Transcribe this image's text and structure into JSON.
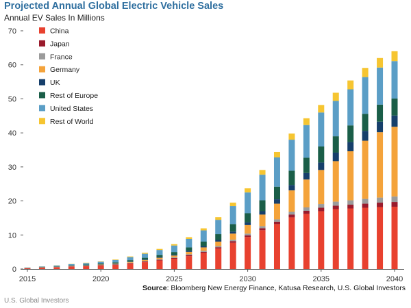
{
  "chart_data": {
    "type": "bar",
    "stacked": true,
    "title": "Projected Annual Global Electric Vehicle Sales",
    "subtitle": "Annual EV Sales In Millions",
    "ylim": [
      0,
      70
    ],
    "yticks": [
      0,
      10,
      20,
      30,
      40,
      50,
      60,
      70
    ],
    "xticks": [
      2015,
      2020,
      2025,
      2030,
      2035,
      2040
    ],
    "grid": false,
    "legend_position": "top-left",
    "categories": [
      2015,
      2016,
      2017,
      2018,
      2019,
      2020,
      2021,
      2022,
      2023,
      2024,
      2025,
      2026,
      2027,
      2028,
      2029,
      2030,
      2031,
      2032,
      2033,
      2034,
      2035,
      2036,
      2037,
      2038,
      2039,
      2040
    ],
    "series": [
      {
        "name": "China",
        "color": "#e8412f",
        "values": [
          0.2,
          0.4,
          0.5,
          0.7,
          0.8,
          1.0,
          1.2,
          1.6,
          2.0,
          2.5,
          3.0,
          3.8,
          4.7,
          6.0,
          7.7,
          9.4,
          11.4,
          13.2,
          15.2,
          16.2,
          17.0,
          17.6,
          17.8,
          18.0,
          18.2,
          18.3
        ]
      },
      {
        "name": "Japan",
        "color": "#9a1b2c",
        "values": [
          0.02,
          0.03,
          0.05,
          0.06,
          0.08,
          0.1,
          0.1,
          0.15,
          0.2,
          0.2,
          0.25,
          0.3,
          0.35,
          0.4,
          0.5,
          0.5,
          0.6,
          0.7,
          0.8,
          0.9,
          1.0,
          1.0,
          1.1,
          1.2,
          1.3,
          1.4
        ]
      },
      {
        "name": "France",
        "color": "#9b9b9b",
        "values": [
          0.02,
          0.03,
          0.04,
          0.05,
          0.06,
          0.08,
          0.1,
          0.12,
          0.15,
          0.2,
          0.2,
          0.25,
          0.3,
          0.35,
          0.4,
          0.5,
          0.6,
          0.7,
          0.8,
          1.0,
          1.1,
          1.2,
          1.3,
          1.4,
          1.5,
          1.6
        ]
      },
      {
        "name": "Germany",
        "color": "#f4a33b",
        "values": [
          0.02,
          0.03,
          0.05,
          0.07,
          0.1,
          0.12,
          0.15,
          0.2,
          0.3,
          0.4,
          0.5,
          0.7,
          1.0,
          1.3,
          1.8,
          2.5,
          3.4,
          4.6,
          6.3,
          8.2,
          10.0,
          11.9,
          14.4,
          17.1,
          19.2,
          20.5
        ]
      },
      {
        "name": "UK",
        "color": "#163f6b",
        "values": [
          0.02,
          0.03,
          0.04,
          0.05,
          0.06,
          0.08,
          0.1,
          0.12,
          0.15,
          0.2,
          0.25,
          0.3,
          0.4,
          0.5,
          0.6,
          0.8,
          1.0,
          1.3,
          1.6,
          1.9,
          2.2,
          2.5,
          2.7,
          2.9,
          3.1,
          3.3
        ]
      },
      {
        "name": "Rest of Europe",
        "color": "#1a5e48",
        "values": [
          0.05,
          0.07,
          0.1,
          0.15,
          0.2,
          0.25,
          0.3,
          0.4,
          0.5,
          0.6,
          0.8,
          1.0,
          1.3,
          1.7,
          2.2,
          2.7,
          3.2,
          3.7,
          4.2,
          4.5,
          4.7,
          4.8,
          4.9,
          5.0,
          5.0,
          5.0
        ]
      },
      {
        "name": "United States",
        "color": "#5b9ec6",
        "values": [
          0.1,
          0.15,
          0.25,
          0.35,
          0.45,
          0.5,
          0.7,
          0.9,
          1.2,
          1.5,
          1.9,
          2.5,
          3.3,
          4.2,
          5.3,
          6.1,
          7.5,
          8.6,
          9.1,
          9.6,
          10.0,
          10.4,
          10.6,
          10.8,
          10.9,
          11.0
        ]
      },
      {
        "name": "Rest of World",
        "color": "#f6c531",
        "values": [
          0.02,
          0.03,
          0.05,
          0.07,
          0.1,
          0.12,
          0.15,
          0.2,
          0.25,
          0.3,
          0.4,
          0.5,
          0.6,
          0.8,
          1.0,
          1.2,
          1.4,
          1.6,
          1.8,
          2.0,
          2.2,
          2.4,
          2.6,
          2.7,
          2.8,
          2.9
        ]
      }
    ]
  },
  "source": {
    "label": "Source",
    "text": ": Bloomberg New Energy Finance, Katusa Research, U.S. Global Investors"
  },
  "footer": "U.S. Global Investors"
}
